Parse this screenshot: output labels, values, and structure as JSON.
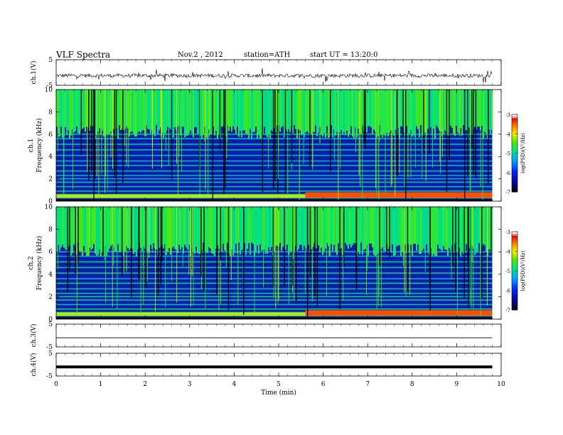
{
  "header": {
    "title": "VLF  Spectra",
    "date": "Nov.2  , 2012",
    "station": "station=ATH",
    "start": "start  UT  =   13:20:0"
  },
  "chart_data": [
    {
      "type": "line",
      "ylabel": "ch.1(V)",
      "yticks": [
        "5",
        "-5"
      ],
      "ylim": [
        -5,
        5
      ],
      "x": [
        0,
        9.8
      ],
      "baseline": -1.2,
      "note_values": "dense noisy trace"
    },
    {
      "type": "heatmap",
      "ylabel": "Frequency (kHz)",
      "channel_label": "ch.1",
      "yticks": [
        "10",
        "8",
        "6",
        "4",
        "2",
        "0"
      ],
      "ylim": [
        0,
        10
      ],
      "colorbar": {
        "label": "log(PSD)(V²/Hz)",
        "ticks": [
          "-3",
          "-4",
          "-5",
          "-6",
          "-7"
        ],
        "range": [
          -7,
          -3
        ]
      }
    },
    {
      "type": "heatmap",
      "ylabel": "Frequency (kHz)",
      "channel_label": "ch.2",
      "yticks": [
        "10",
        "8",
        "6",
        "4",
        "2",
        "0"
      ],
      "ylim": [
        0,
        10
      ],
      "colorbar": {
        "label": "log(PSD)(V²/Hz)",
        "ticks": [
          "-3",
          "-4",
          "-5",
          "-6",
          "-7"
        ],
        "range": [
          -7,
          -3
        ]
      }
    },
    {
      "type": "line",
      "ylabel": "ch.3(V)",
      "yticks": [
        "5",
        "-5"
      ],
      "ylim": [
        -5,
        5
      ],
      "baseline": -1.0
    },
    {
      "type": "line",
      "ylabel": "ch.4(V)",
      "yticks": [
        "5",
        "-5"
      ],
      "ylim": [
        -5,
        5
      ],
      "baseline": -1.0
    }
  ],
  "xaxis": {
    "label": "Time  (min)",
    "ticks": [
      "0",
      "1",
      "2",
      "3",
      "4",
      "5",
      "6",
      "7",
      "8",
      "9",
      "10"
    ],
    "xlim": [
      0,
      10
    ]
  }
}
